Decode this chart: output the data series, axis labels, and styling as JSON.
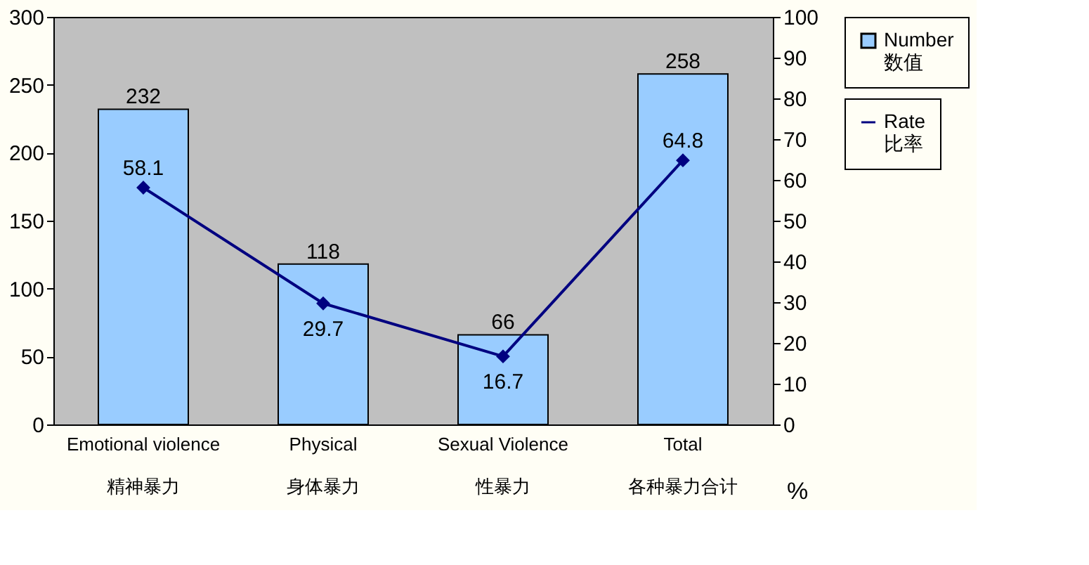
{
  "chart_data": {
    "type": "bar",
    "categories": [
      "Emotional violence\n精神暴力",
      "Physical\n身体暴力",
      "Sexual Violence\n性暴力",
      "Total\n各种暴力合计"
    ],
    "series": [
      {
        "name": "Number\n数值",
        "color": "#99ccff",
        "values": [
          232,
          118,
          66,
          258
        ]
      },
      {
        "name": "Rate\n比率",
        "type": "line",
        "axis": "y2",
        "color": "#000080",
        "values": [
          58.1,
          29.7,
          16.7,
          64.8
        ]
      }
    ],
    "ylim": [
      0,
      300
    ],
    "yticks": [
      0,
      50,
      100,
      150,
      200,
      250,
      300
    ],
    "y2lim": [
      0,
      100
    ],
    "y2ticks": [
      0,
      10,
      20,
      30,
      40,
      50,
      60,
      70,
      80,
      90,
      100
    ],
    "data_labels": true,
    "marker": "diamond",
    "line_style": "solid",
    "grid": false,
    "legend": "right",
    "annotations": [
      "%"
    ]
  }
}
